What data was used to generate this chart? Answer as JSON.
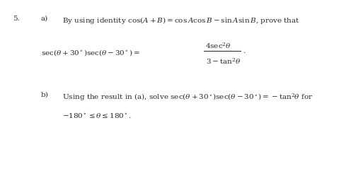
{
  "background_color": "#ffffff",
  "figsize": [
    4.96,
    2.52
  ],
  "dpi": 100,
  "font_size": 7.5,
  "text_color": "#2a2a2a",
  "q_num": "5.",
  "a_label": "a)",
  "a_line1_pre": "By using identity cos",
  "a_line1_mid": "(",
  "a_line1_formula": "A",
  "a_line1_rest": "+ B) = cos A cos B − sin A sin B , prove that",
  "a_formula_lhs": "sec(θ + 30°)sec(θ − 30°) =",
  "a_frac_num": "4sec² θ",
  "a_frac_den": "3 − tan² θ",
  "b_label": "b)",
  "b_line1": "Using the result in (a), solve sec(θ + 30°)sec(θ − 30°) = −tan² θ for",
  "b_line2": "−180° ≤ θ ≤ 180°."
}
